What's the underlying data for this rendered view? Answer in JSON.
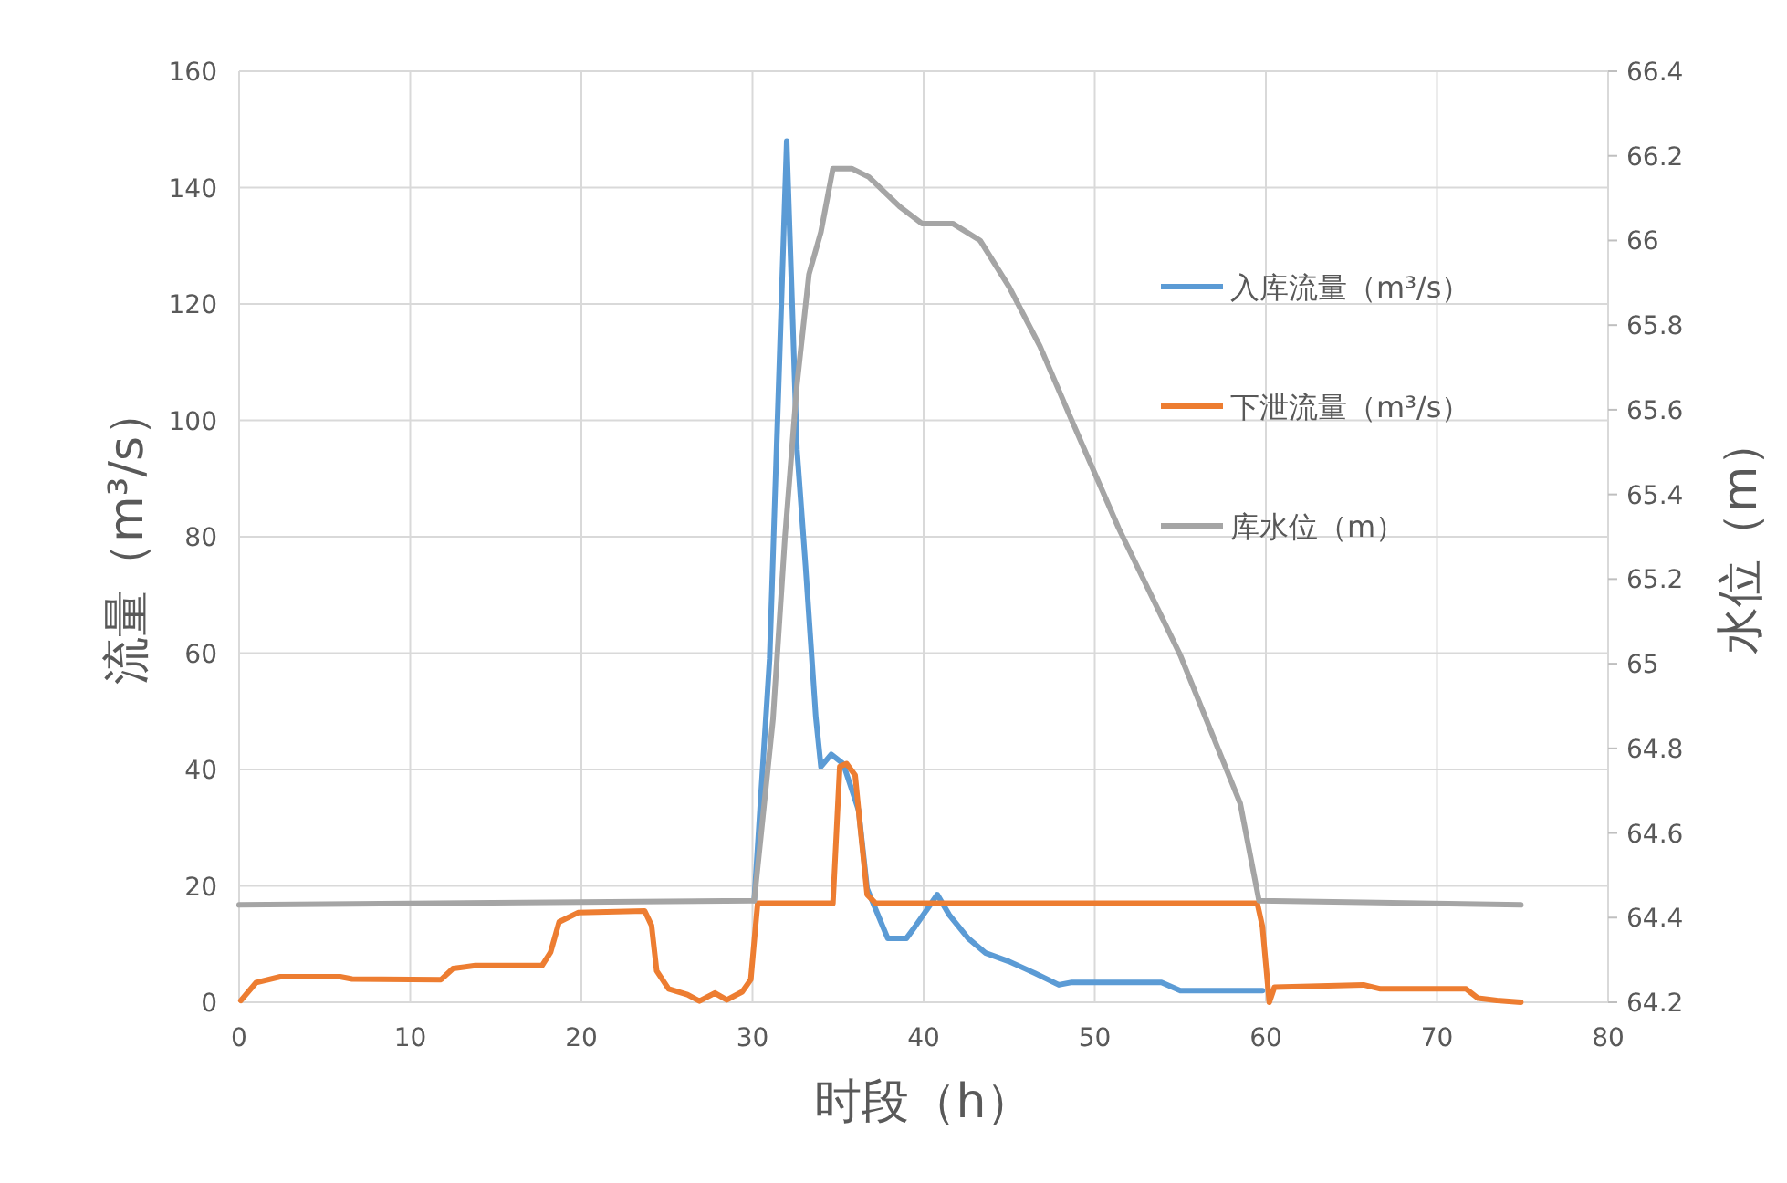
{
  "chart_data": {
    "type": "line",
    "xlabel": "时段（h）",
    "ylabel": "流量（m³/s）",
    "y2label": "水位（m）",
    "xlim": [
      0,
      80
    ],
    "xticks": [
      0,
      10,
      20,
      30,
      40,
      50,
      60,
      70,
      80
    ],
    "ylim": [
      0,
      160
    ],
    "yticks": [
      0,
      20,
      40,
      60,
      80,
      100,
      120,
      140,
      160
    ],
    "y2lim": [
      64.2,
      66.4
    ],
    "y2ticks": [
      64.2,
      64.4,
      64.6,
      64.8,
      65,
      65.2,
      65.4,
      65.6,
      65.8,
      66,
      66.2,
      66.4
    ],
    "grid": true,
    "legend": "right",
    "series": [
      {
        "name": "入库流量（m³/s）",
        "color": "#5b9bd5",
        "x": [
          30.1,
          31.0,
          32.0,
          32.6,
          33.1,
          33.7,
          34.0,
          34.6,
          35.3,
          36.2,
          36.7,
          37.9,
          39.0,
          39.5,
          40.8,
          41.5,
          42.6,
          43.6,
          45.0,
          46.5,
          47.9,
          48.6,
          53.9,
          55.0,
          59.8
        ],
        "values": [
          17.5,
          59,
          148,
          95,
          75,
          49,
          40.5,
          42.6,
          41,
          33,
          19.5,
          11,
          11,
          13,
          18.5,
          15,
          11,
          8.5,
          7,
          5,
          3,
          3.4,
          3.4,
          2,
          2
        ]
      },
      {
        "name": "下泄流量（m³/s）",
        "color": "#ed7d31",
        "x": [
          0.1,
          1.0,
          2.4,
          5.9,
          6.6,
          11.8,
          12.5,
          13.8,
          17.7,
          18.2,
          18.7,
          19.8,
          23.7,
          24.1,
          24.4,
          25.1,
          26.2,
          26.9,
          27.8,
          28.5,
          29.4,
          29.9,
          30.3,
          34.7,
          35.1,
          35.5,
          36.0,
          36.3,
          36.7,
          37.2,
          59.5,
          59.8,
          60.2,
          60.5,
          65.7,
          66.7,
          71.7,
          72.4,
          73.5,
          74.9
        ],
        "values": [
          0.3,
          3.4,
          4.4,
          4.4,
          4,
          3.9,
          5.8,
          6.3,
          6.3,
          8.6,
          13.8,
          15.4,
          15.7,
          13.2,
          5.4,
          2.3,
          1.3,
          0.2,
          1.6,
          0.4,
          1.8,
          3.9,
          17,
          17,
          40.5,
          41,
          39,
          30,
          18.5,
          17,
          17,
          13,
          0,
          2.6,
          3,
          2.3,
          2.3,
          0.7,
          0.3,
          0
        ]
      },
      {
        "name": "库水位（m）",
        "color": "#a5a5a5",
        "axis": "y2",
        "x": [
          0,
          30.1,
          31.2,
          31.9,
          32.6,
          33.3,
          34.0,
          34.7,
          35.8,
          36.8,
          38.6,
          39.9,
          41.7,
          43.3,
          45.0,
          46.8,
          48.6,
          51.4,
          55.0,
          58.5,
          59.6,
          74.9
        ],
        "values": [
          64.43,
          64.44,
          64.87,
          65.3,
          65.66,
          65.92,
          66.02,
          66.17,
          66.17,
          66.15,
          66.08,
          66.04,
          66.04,
          66.0,
          65.89,
          65.75,
          65.58,
          65.32,
          65.02,
          64.67,
          64.44,
          64.43
        ]
      }
    ]
  }
}
